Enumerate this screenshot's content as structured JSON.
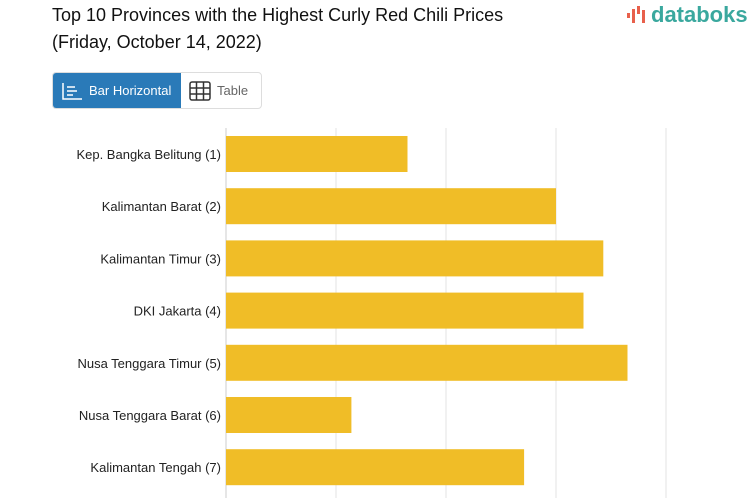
{
  "header": {
    "title_line1": "Top 10 Provinces with the Highest Curly Red Chili Prices",
    "title_line2": "(Friday, October 14, 2022)",
    "logo": "databoks"
  },
  "toggle": {
    "bar_label": "Bar Horizontal",
    "table_label": "Table",
    "active": "Bar Horizontal"
  },
  "colors": {
    "bar": "#f0bd27",
    "accent": "#2a7ab8",
    "grid": "#e3e3e3",
    "logo": "#3aa89e"
  },
  "chart_data": {
    "type": "bar",
    "orientation": "horizontal",
    "title": "Top 10 Provinces with the Highest Curly Red Chili Prices",
    "subtitle": "(Friday, October 14, 2022)",
    "categories": [
      "Kep. Bangka Belitung (1)",
      "Kalimantan Barat (2)",
      "Kalimantan Timur (3)",
      "DKI Jakarta (4)",
      "Nusa Tenggara Timur (5)",
      "Nusa Tenggara Barat (6)",
      "Kalimantan Tengah (7)"
    ],
    "values": [
      1.65,
      3.0,
      3.43,
      3.25,
      3.65,
      1.14,
      2.71
    ],
    "value_units": "gridline intervals (axis tick labels not visible)",
    "xlim": [
      0,
      4.2
    ],
    "grid": true
  }
}
